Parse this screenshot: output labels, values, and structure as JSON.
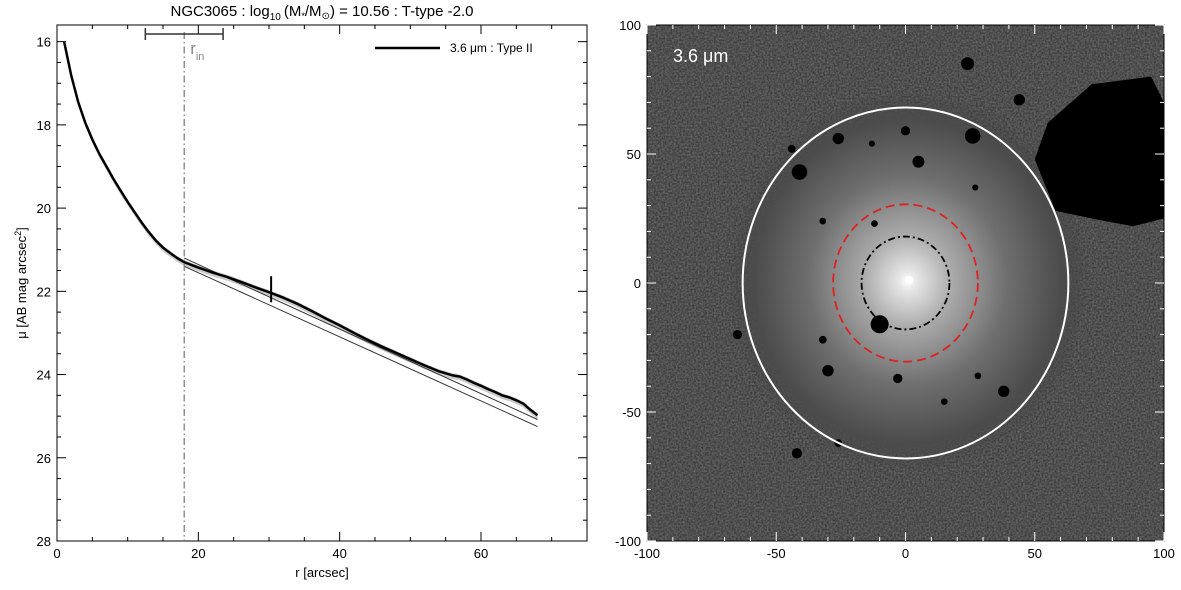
{
  "title": {
    "name": "NGC3065 : log",
    "sub": "10",
    "mass": "(M",
    "star": "*",
    "over": "/M",
    "sun": "⊙",
    "rest": ") = 10.56 : T-type -2.0"
  },
  "chart_data": [
    {
      "type": "line",
      "xlabel": "r [arcsec]",
      "ylabel": "μ [AB mag arcsec",
      "ylabel_sup": "2",
      "ylabel_end": "]",
      "xlim": [
        0,
        75
      ],
      "ylim": [
        28,
        15.6
      ],
      "xticks": [
        0,
        20,
        40,
        60
      ],
      "yticks": [
        16,
        18,
        20,
        22,
        24,
        26,
        28
      ],
      "legend": {
        "label": "3.6 μm : Type II",
        "placement": "top-right"
      },
      "r_in": {
        "label": "r",
        "sub": "in",
        "value": 18,
        "err_low": 12.5,
        "err_high": 23.5
      },
      "break_marker": {
        "x": 30.3,
        "y": 21.95
      },
      "series": [
        {
          "x": [
            1,
            2,
            3,
            4,
            5,
            6,
            7,
            8,
            9,
            10,
            11,
            12,
            13,
            14,
            15,
            16,
            17,
            18,
            20,
            22,
            24,
            26,
            28,
            30,
            32,
            34,
            36,
            38,
            40,
            42,
            44,
            46,
            48,
            50,
            52,
            54,
            56,
            57,
            58,
            59,
            60,
            61,
            62,
            63,
            64,
            65,
            66,
            67,
            68
          ],
          "y": [
            16.0,
            16.8,
            17.45,
            17.95,
            18.35,
            18.7,
            19.0,
            19.3,
            19.58,
            19.85,
            20.1,
            20.35,
            20.58,
            20.78,
            20.95,
            21.08,
            21.2,
            21.3,
            21.43,
            21.55,
            21.65,
            21.77,
            21.9,
            22.02,
            22.15,
            22.3,
            22.47,
            22.65,
            22.82,
            23.0,
            23.17,
            23.33,
            23.48,
            23.63,
            23.78,
            23.92,
            24.02,
            24.05,
            24.12,
            24.2,
            24.27,
            24.35,
            24.42,
            24.5,
            24.55,
            24.62,
            24.7,
            24.85,
            24.98
          ]
        }
      ],
      "fits": [
        {
          "x": [
            18,
            68
          ],
          "y": [
            21.2,
            25.08
          ]
        },
        {
          "x": [
            18,
            68
          ],
          "y": [
            21.4,
            25.25
          ]
        }
      ]
    },
    {
      "type": "image",
      "band_label": "3.6 μm",
      "xlim": [
        -100,
        100
      ],
      "ylim": [
        -100,
        100
      ],
      "xticks": [
        -100,
        -50,
        0,
        50,
        100
      ],
      "yticks": [
        -100,
        -50,
        0,
        50,
        100
      ],
      "ellipses": [
        {
          "name": "outer-ellipse",
          "cx": 0,
          "cy": 0,
          "rx": 63,
          "ry": 68,
          "color": "#ffffff",
          "style": "solid"
        },
        {
          "name": "red-dashed-ellipse",
          "cx": 0,
          "cy": 0,
          "rx": 28,
          "ry": 30.5,
          "color": "#dd2222",
          "style": "dashed"
        },
        {
          "name": "inner-dashdot-ellipse",
          "cx": 0,
          "cy": 0,
          "rx": 17,
          "ry": 18,
          "color": "#000000",
          "style": "dashdot"
        }
      ],
      "masks": [
        {
          "x": -10,
          "y": -16,
          "r": 3.5
        },
        {
          "x": -30,
          "y": -34,
          "r": 2.2
        },
        {
          "x": -32,
          "y": -22,
          "r": 1.5
        },
        {
          "x": -3,
          "y": -37,
          "r": 1.8
        },
        {
          "x": 28,
          "y": -36,
          "r": 1.3
        },
        {
          "x": 15,
          "y": -46,
          "r": 1.3
        },
        {
          "x": 38,
          "y": -42,
          "r": 2.2
        },
        {
          "x": -42,
          "y": -66,
          "r": 2.0
        },
        {
          "x": -26,
          "y": -62,
          "r": 1.5
        },
        {
          "x": -12,
          "y": 23,
          "r": 1.3
        },
        {
          "x": -32,
          "y": 24,
          "r": 1.3
        },
        {
          "x": 27,
          "y": 37,
          "r": 1.2
        },
        {
          "x": 5,
          "y": 47,
          "r": 2.3
        },
        {
          "x": 26,
          "y": 57,
          "r": 3.0
        },
        {
          "x": -41,
          "y": 43,
          "r": 3.0
        },
        {
          "x": -26,
          "y": 56,
          "r": 2.2
        },
        {
          "x": -13,
          "y": 54,
          "r": 1.2
        },
        {
          "x": 0,
          "y": 59,
          "r": 1.8
        },
        {
          "x": 24,
          "y": 85,
          "r": 2.5
        },
        {
          "x": 44,
          "y": 71,
          "r": 2.2
        },
        {
          "x": -44,
          "y": 52,
          "r": 1.5
        },
        {
          "x": -65,
          "y": -20,
          "r": 1.8
        }
      ],
      "large_mask": [
        [
          55,
          62
        ],
        [
          72,
          77
        ],
        [
          95,
          80
        ],
        [
          100,
          70
        ],
        [
          100,
          25
        ],
        [
          88,
          22
        ],
        [
          72,
          25
        ],
        [
          58,
          28
        ],
        [
          50,
          48
        ]
      ]
    }
  ]
}
